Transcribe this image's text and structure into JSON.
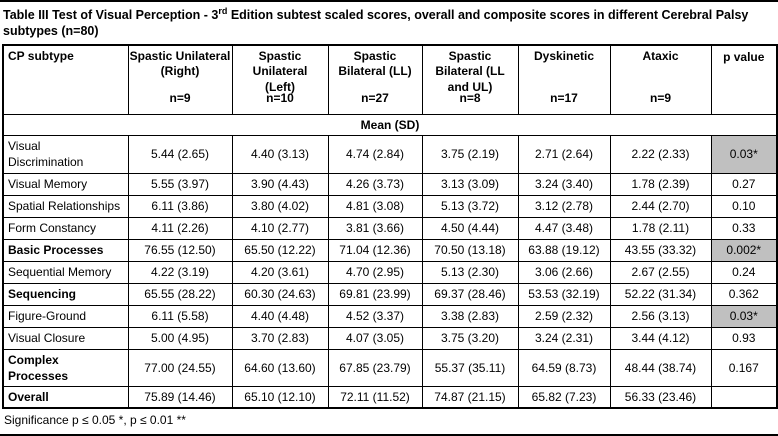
{
  "title": {
    "part1": "Table III Test of Visual Perception - 3",
    "superscript": "rd",
    "part2": " Edition subtest scaled scores, overall and composite scores in different Cerebral Palsy subtypes (n=80)"
  },
  "table": {
    "first_column_header": "CP subtype",
    "subheader": "Mean (SD)",
    "p_value_header": "p value",
    "columns": [
      {
        "name": "Spastic Unilateral\n(Right)",
        "n": "n=9"
      },
      {
        "name": "Spastic\nUnilateral\n(Left)",
        "n": "n=10"
      },
      {
        "name": "Spastic\nBilateral (LL)",
        "n": "n=27"
      },
      {
        "name": "Spastic\nBilateral (LL\nand UL)",
        "n": "n=8"
      },
      {
        "name": "Dyskinetic",
        "n": "n=17"
      },
      {
        "name": "Ataxic",
        "n": "n=9"
      }
    ],
    "rows": [
      {
        "label": "Visual\nDiscrimination",
        "bold": false,
        "values": [
          "5.44 (2.65)",
          "4.40 (3.13)",
          "4.74 (2.84)",
          "3.75 (2.19)",
          "2.71 (2.64)",
          "2.22 (2.33)"
        ],
        "p": "0.03*",
        "p_highlight": true
      },
      {
        "label": "Visual Memory",
        "bold": false,
        "values": [
          "5.55 (3.97)",
          "3.90 (4.43)",
          "4.26 (3.73)",
          "3.13 (3.09)",
          "3.24 (3.40)",
          "1.78 (2.39)"
        ],
        "p": "0.27",
        "p_highlight": false
      },
      {
        "label": "Spatial Relationships",
        "bold": false,
        "values": [
          "6.11 (3.86)",
          "3.80 (4.02)",
          "4.81 (3.08)",
          "5.13 (3.72)",
          "3.12 (2.78)",
          "2.44 (2.70)"
        ],
        "p": "0.10",
        "p_highlight": false
      },
      {
        "label": "Form Constancy",
        "bold": false,
        "values": [
          "4.11 (2.26)",
          "4.10 (2.77)",
          "3.81 (3.66)",
          "4.50 (4.44)",
          "4.47 (3.48)",
          "1.78 (2.11)"
        ],
        "p": "0.33",
        "p_highlight": false
      },
      {
        "label": "Basic Processes",
        "bold": true,
        "values": [
          "76.55 (12.50)",
          "65.50 (12.22)",
          "71.04 (12.36)",
          "70.50 (13.18)",
          "63.88 (19.12)",
          "43.55 (33.32)"
        ],
        "p": "0.002*",
        "p_highlight": true
      },
      {
        "label": "Sequential Memory",
        "bold": false,
        "values": [
          "4.22 (3.19)",
          "4.20 (3.61)",
          "4.70 (2.95)",
          "5.13 (2.30)",
          "3.06 (2.66)",
          "2.67 (2.55)"
        ],
        "p": "0.24",
        "p_highlight": false
      },
      {
        "label": "Sequencing",
        "bold": true,
        "values": [
          "65.55 (28.22)",
          "60.30 (24.63)",
          "69.81 (23.99)",
          "69.37 (28.46)",
          "53.53 (32.19)",
          "52.22 (31.34)"
        ],
        "p": "0.362",
        "p_highlight": false
      },
      {
        "label": "Figure-Ground",
        "bold": false,
        "values": [
          "6.11 (5.58)",
          "4.40 (4.48)",
          "4.52 (3.37)",
          "3.38 (2.83)",
          "2.59 (2.32)",
          "2.56 (3.13)"
        ],
        "p": "0.03*",
        "p_highlight": true
      },
      {
        "label": "Visual Closure",
        "bold": false,
        "values": [
          "5.00 (4.95)",
          "3.70 (2.83)",
          "4.07 (3.05)",
          "3.75 (3.20)",
          "3.24 (2.31)",
          "3.44 (4.12)"
        ],
        "p": "0.93",
        "p_highlight": false
      },
      {
        "label": "Complex\nProcesses",
        "bold": true,
        "values": [
          "77.00 (24.55)",
          "64.60 (13.60)",
          "67.85 (23.79)",
          "55.37 (35.11)",
          "64.59 (8.73)",
          "48.44 (38.74)"
        ],
        "p": "0.167",
        "p_highlight": false
      },
      {
        "label": "Overall",
        "bold": true,
        "values": [
          "75.89 (14.46)",
          "65.10 (12.10)",
          "72.11 (11.52)",
          "74.87 (21.15)",
          "65.82 (7.23)",
          "56.33 (23.46)"
        ],
        "p": "",
        "p_highlight": false
      }
    ]
  },
  "footer": "Significance p ≤ 0.05 *, p ≤ 0.01 **",
  "colors": {
    "highlight": "#c0c0c0",
    "border": "#000000",
    "text": "#000000",
    "background": "#ffffff"
  }
}
